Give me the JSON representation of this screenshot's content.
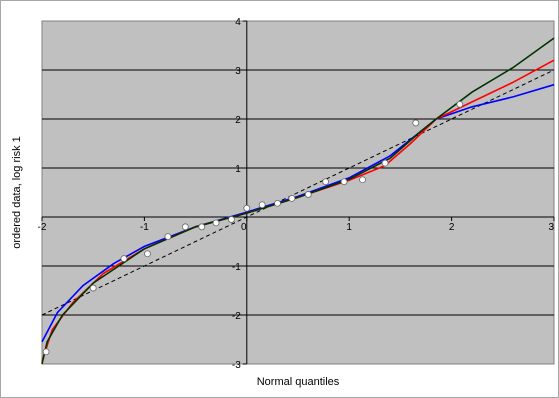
{
  "chart_data": {
    "type": "scatter",
    "title": "",
    "xlabel": "Normal quantiles",
    "ylabel": "ordered data, log risk 1",
    "xlim": [
      -2,
      3
    ],
    "ylim": [
      -3,
      4
    ],
    "x_ticks": [
      "-2",
      "-1",
      "0",
      "1",
      "2",
      "3"
    ],
    "y_ticks": [
      "-3",
      "-2",
      "-1",
      "",
      "1",
      "2",
      "3",
      "4"
    ],
    "plot_background": "#c0c0c0",
    "grid": "horizontal",
    "legend": "none",
    "series": [
      {
        "kind": "points",
        "color": "#ffffff",
        "points": [
          [
            -1.96,
            -2.75
          ],
          [
            -1.5,
            -1.45
          ],
          [
            -1.2,
            -0.85
          ],
          [
            -0.97,
            -0.75
          ],
          [
            -0.77,
            -0.4
          ],
          [
            -0.6,
            -0.2
          ],
          [
            -0.44,
            -0.2
          ],
          [
            -0.3,
            -0.12
          ],
          [
            -0.15,
            -0.05
          ],
          [
            0.0,
            0.18
          ],
          [
            0.15,
            0.25
          ],
          [
            0.3,
            0.28
          ],
          [
            0.44,
            0.38
          ],
          [
            0.6,
            0.46
          ],
          [
            0.77,
            0.72
          ],
          [
            0.95,
            0.72
          ],
          [
            1.13,
            0.76
          ],
          [
            1.35,
            1.1
          ],
          [
            1.65,
            1.92
          ],
          [
            2.08,
            2.3
          ]
        ]
      },
      {
        "kind": "line",
        "color": "#000000",
        "dash": true,
        "points": [
          [
            -2,
            -2.0
          ],
          [
            3,
            3.0
          ]
        ]
      },
      {
        "kind": "line",
        "color": "#0000ff",
        "points": [
          [
            -2.0,
            -2.55
          ],
          [
            -1.85,
            -1.95
          ],
          [
            -1.6,
            -1.4
          ],
          [
            -1.3,
            -0.95
          ],
          [
            -1.0,
            -0.6
          ],
          [
            -0.5,
            -0.2
          ],
          [
            0.0,
            0.1
          ],
          [
            0.5,
            0.42
          ],
          [
            1.0,
            0.8
          ],
          [
            1.4,
            1.25
          ],
          [
            1.7,
            1.75
          ],
          [
            1.85,
            2.0
          ],
          [
            2.2,
            2.25
          ],
          [
            2.6,
            2.45
          ],
          [
            3.0,
            2.7
          ]
        ]
      },
      {
        "kind": "line",
        "color": "#ff0000",
        "points": [
          [
            -2.0,
            -2.95
          ],
          [
            -1.9,
            -2.3
          ],
          [
            -1.7,
            -1.75
          ],
          [
            -1.4,
            -1.15
          ],
          [
            -1.0,
            -0.65
          ],
          [
            -0.5,
            -0.2
          ],
          [
            0.0,
            0.08
          ],
          [
            0.5,
            0.4
          ],
          [
            1.0,
            0.75
          ],
          [
            1.35,
            1.05
          ],
          [
            1.6,
            1.5
          ],
          [
            1.85,
            2.0
          ],
          [
            2.2,
            2.35
          ],
          [
            2.6,
            2.75
          ],
          [
            3.0,
            3.2
          ]
        ]
      },
      {
        "kind": "line",
        "color": "#003300",
        "points": [
          [
            -2.0,
            -3.0
          ],
          [
            -1.95,
            -2.55
          ],
          [
            -1.8,
            -2.0
          ],
          [
            -1.5,
            -1.35
          ],
          [
            -1.0,
            -0.65
          ],
          [
            -0.5,
            -0.2
          ],
          [
            0.0,
            0.08
          ],
          [
            0.5,
            0.4
          ],
          [
            1.0,
            0.77
          ],
          [
            1.4,
            1.2
          ],
          [
            1.7,
            1.75
          ],
          [
            1.85,
            2.0
          ],
          [
            2.2,
            2.55
          ],
          [
            2.6,
            3.05
          ],
          [
            3.0,
            3.65
          ]
        ]
      }
    ]
  }
}
